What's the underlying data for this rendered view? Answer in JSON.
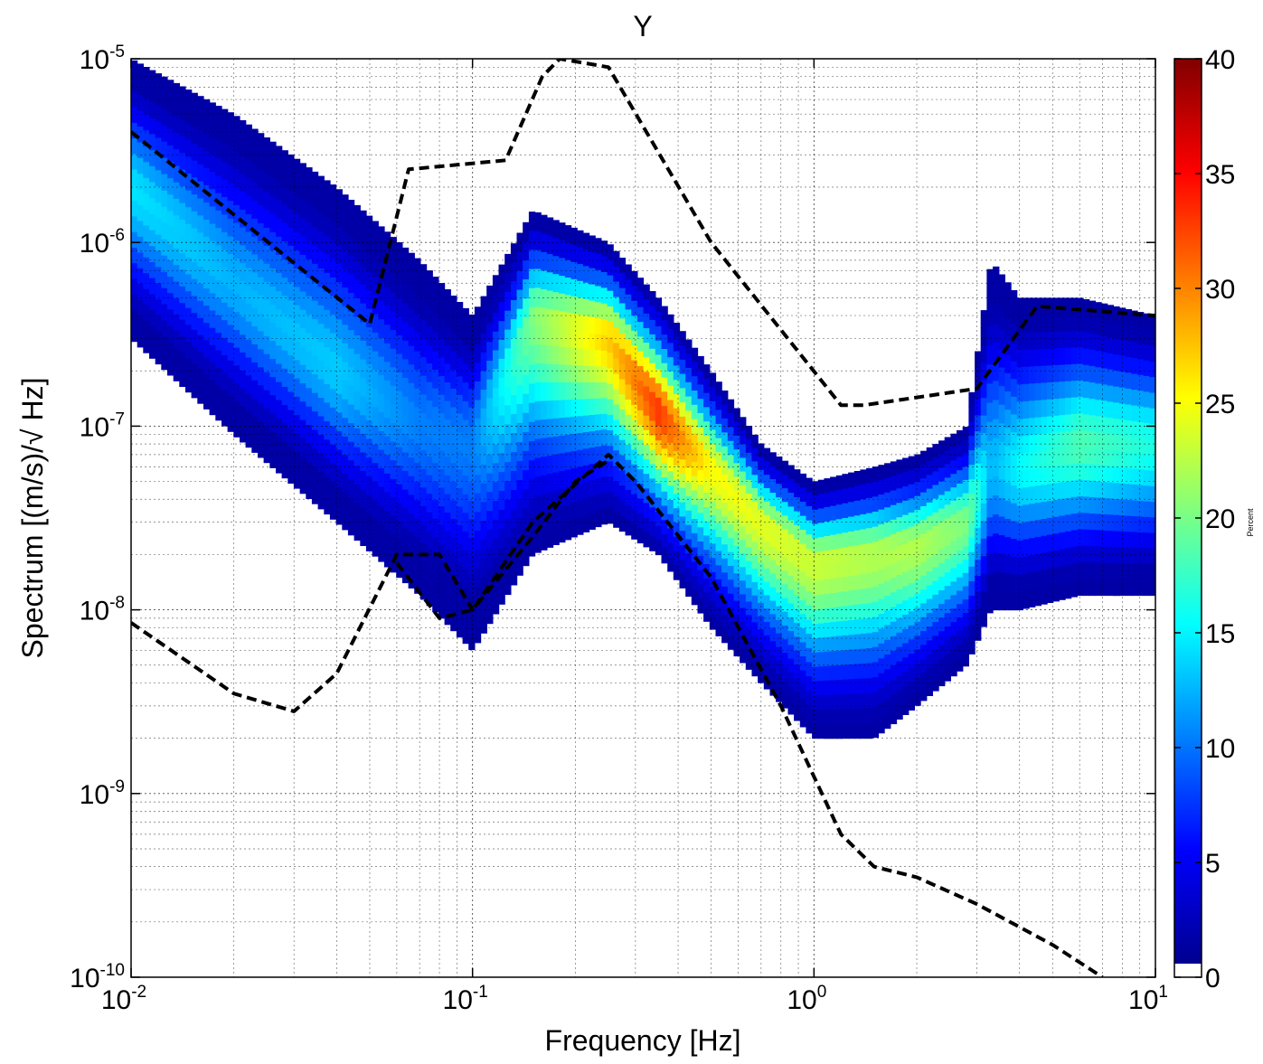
{
  "chart_data": {
    "type": "heatmap",
    "title": "Y",
    "xlabel": "Frequency [Hz]",
    "ylabel": "Spectrum [(m/s)/√ Hz]",
    "xscale": "log",
    "yscale": "log",
    "xlim": [
      0.01,
      10
    ],
    "ylim": [
      1e-10,
      1e-05
    ],
    "grid": true,
    "x_ticks": [
      {
        "base": "10",
        "exp": "-2"
      },
      {
        "base": "10",
        "exp": "-1"
      },
      {
        "base": "10",
        "exp": "0"
      },
      {
        "base": "10",
        "exp": "1"
      }
    ],
    "y_ticks": [
      {
        "base": "10",
        "exp": "-10"
      },
      {
        "base": "10",
        "exp": "-9"
      },
      {
        "base": "10",
        "exp": "-8"
      },
      {
        "base": "10",
        "exp": "-7"
      },
      {
        "base": "10",
        "exp": "-6"
      },
      {
        "base": "10",
        "exp": "-5"
      }
    ],
    "colorbar": {
      "label": "Percent",
      "range": [
        0,
        40
      ],
      "ticks": [
        "0",
        "5",
        "10",
        "15",
        "20",
        "25",
        "30",
        "35",
        "40"
      ],
      "colormap": "jet"
    },
    "density": {
      "description_note": "",
      "ridge": [
        {
          "f": 0.01,
          "median": 2e-06,
          "upper": 1e-05,
          "lower": 3e-07,
          "peak_percent": 14
        },
        {
          "f": 0.02,
          "median": 6e-07,
          "upper": 5e-06,
          "lower": 9e-08,
          "peak_percent": 12
        },
        {
          "f": 0.04,
          "median": 2e-07,
          "upper": 2e-06,
          "lower": 3e-08,
          "peak_percent": 13
        },
        {
          "f": 0.07,
          "median": 1e-07,
          "upper": 8e-07,
          "lower": 1.2e-08,
          "peak_percent": 10
        },
        {
          "f": 0.1,
          "median": 8e-08,
          "upper": 4e-07,
          "lower": 6e-09,
          "peak_percent": 10
        },
        {
          "f": 0.15,
          "median": 4e-07,
          "upper": 1.5e-06,
          "lower": 2e-08,
          "peak_percent": 20
        },
        {
          "f": 0.25,
          "median": 3e-07,
          "upper": 1e-06,
          "lower": 3e-08,
          "peak_percent": 27
        },
        {
          "f": 0.35,
          "median": 1.2e-07,
          "upper": 5e-07,
          "lower": 2e-08,
          "peak_percent": 33
        },
        {
          "f": 0.5,
          "median": 6e-08,
          "upper": 2e-07,
          "lower": 8e-09,
          "peak_percent": 25
        },
        {
          "f": 0.7,
          "median": 3e-08,
          "upper": 8e-08,
          "lower": 4e-09,
          "peak_percent": 24
        },
        {
          "f": 1.0,
          "median": 1.8e-08,
          "upper": 5e-08,
          "lower": 2e-09,
          "peak_percent": 23
        },
        {
          "f": 1.5,
          "median": 2e-08,
          "upper": 6e-08,
          "lower": 2e-09,
          "peak_percent": 22
        },
        {
          "f": 2.0,
          "median": 2.2e-08,
          "upper": 7e-08,
          "lower": 3e-09,
          "peak_percent": 22
        },
        {
          "f": 2.8,
          "median": 3e-08,
          "upper": 1e-07,
          "lower": 5e-09,
          "peak_percent": 20
        },
        {
          "f": 3.3,
          "median": 6e-08,
          "upper": 8e-07,
          "lower": 1e-08,
          "peak_percent": 12
        },
        {
          "f": 4.0,
          "median": 6e-08,
          "upper": 5e-07,
          "lower": 1e-08,
          "peak_percent": 15
        },
        {
          "f": 6.0,
          "median": 8e-08,
          "upper": 5e-07,
          "lower": 1.2e-08,
          "peak_percent": 18
        },
        {
          "f": 10.0,
          "median": 8e-08,
          "upper": 4e-07,
          "lower": 1.2e-08,
          "peak_percent": 16
        }
      ]
    },
    "series": [
      {
        "style": "dashed",
        "color": "#000000",
        "x": [
          0.01,
          0.05,
          0.065,
          0.125,
          0.16,
          0.18,
          0.25,
          0.5,
          1.2,
          1.4,
          3.0,
          4.5,
          10.0
        ],
        "y": [
          4e-06,
          3.6e-07,
          2.5e-06,
          2.8e-06,
          8e-06,
          1e-05,
          9e-06,
          1e-06,
          1.3e-07,
          1.3e-07,
          1.6e-07,
          4.5e-07,
          4e-07
        ]
      },
      {
        "style": "dashed",
        "color": "#000000",
        "x": [
          0.01,
          0.02,
          0.03,
          0.04,
          0.06,
          0.08,
          0.1,
          0.15,
          0.2,
          0.25
        ],
        "y": [
          8.5e-09,
          3.5e-09,
          2.8e-09,
          4.5e-09,
          2e-08,
          2e-08,
          1e-08,
          2.5e-08,
          5e-08,
          6.5e-08
        ]
      },
      {
        "style": "dashed",
        "color": "#000000",
        "x": [
          0.06,
          0.08,
          0.1,
          0.15,
          0.25,
          0.3,
          0.5,
          0.8,
          1.2,
          1.5,
          2.0,
          3.0,
          5.0,
          7.0
        ],
        "y": [
          1.8e-08,
          9e-09,
          1e-08,
          3e-08,
          7e-08,
          5e-08,
          1.5e-08,
          3e-09,
          6e-10,
          4e-10,
          3.5e-10,
          2.5e-10,
          1.5e-10,
          1e-10
        ]
      }
    ]
  }
}
